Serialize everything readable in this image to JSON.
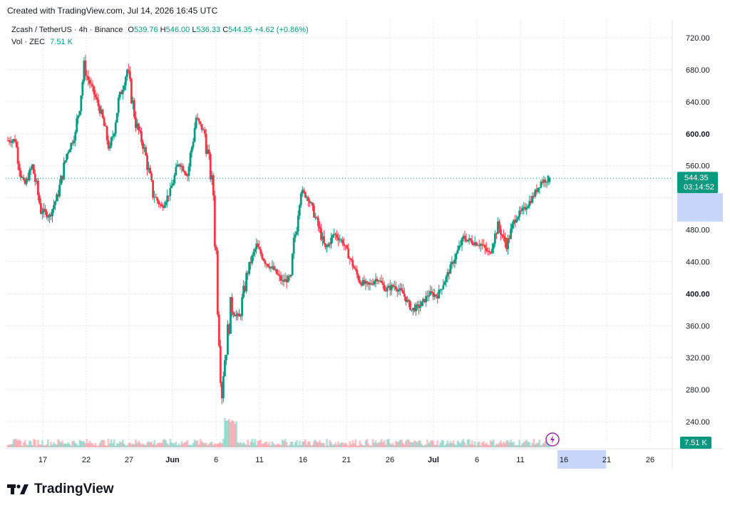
{
  "header": {
    "created_text": "Created with TradingView.com, Jul 14, 2026 16:45 UTC"
  },
  "legend": {
    "symbol": "Zcash / TetherUS · 4h · Binance",
    "o_label": "O",
    "o_value": "539.76",
    "h_label": "H",
    "h_value": "546.00",
    "l_label": "L",
    "l_value": "536.33",
    "c_label": "C",
    "c_value": "544.35",
    "change": "+4.62 (+0.86%)",
    "vol_label": "Vol · ZEC",
    "vol_value": "7.51 K"
  },
  "brand": {
    "name": "TradingView"
  },
  "colors": {
    "up": "#089981",
    "down": "#f23645",
    "grid": "#e0e3eb",
    "price_line": "#089981",
    "highlight": "#c9d6fb"
  },
  "icons": {
    "lightning": "lightning-icon",
    "logo": "tradingview-logo-icon"
  },
  "chart_data": {
    "type": "candlestick",
    "symbol": "Zcash / TetherUS",
    "interval": "4h",
    "exchange": "Binance",
    "ylim": [
      220,
      740
    ],
    "y_ticks": [
      "720.00",
      "680.00",
      "640.00",
      "600.00",
      "560.00",
      "520.00",
      "480.00",
      "440.00",
      "400.00",
      "360.00",
      "320.00",
      "280.00",
      "240.00"
    ],
    "x_ticks": [
      "17",
      "22",
      "27",
      "Jun",
      "6",
      "11",
      "16",
      "21",
      "26",
      "Jul",
      "6",
      "11",
      "16",
      "21",
      "26"
    ],
    "last_price": "544.35",
    "countdown": "03:14:52",
    "volume_label": "7.51 K",
    "series_close": [
      {
        "date": "May 13",
        "close": 592
      },
      {
        "date": "May 14",
        "close": 532
      },
      {
        "date": "May 15",
        "close": 560
      },
      {
        "date": "May 16",
        "close": 505
      },
      {
        "date": "May 17",
        "close": 497
      },
      {
        "date": "May 18",
        "close": 525
      },
      {
        "date": "May 19",
        "close": 575
      },
      {
        "date": "May 20",
        "close": 600
      },
      {
        "date": "May 21",
        "close": 680
      },
      {
        "date": "May 22",
        "close": 655
      },
      {
        "date": "May 23",
        "close": 625
      },
      {
        "date": "May 24",
        "close": 578
      },
      {
        "date": "May 25",
        "close": 640
      },
      {
        "date": "May 26",
        "close": 680
      },
      {
        "date": "May 27",
        "close": 615
      },
      {
        "date": "May 28",
        "close": 580
      },
      {
        "date": "May 29",
        "close": 525
      },
      {
        "date": "May 30",
        "close": 508
      },
      {
        "date": "May 31",
        "close": 528
      },
      {
        "date": "Jun 1",
        "close": 565
      },
      {
        "date": "Jun 2",
        "close": 548
      },
      {
        "date": "Jun 3",
        "close": 620
      },
      {
        "date": "Jun 4",
        "close": 600
      },
      {
        "date": "Jun 5",
        "close": 525
      },
      {
        "date": "Jun 6",
        "close": 290
      },
      {
        "date": "Jun 7",
        "close": 380
      },
      {
        "date": "Jun 8",
        "close": 370
      },
      {
        "date": "Jun 9",
        "close": 430
      },
      {
        "date": "Jun 10",
        "close": 460
      },
      {
        "date": "Jun 11",
        "close": 440
      },
      {
        "date": "Jun 12",
        "close": 430
      },
      {
        "date": "Jun 13",
        "close": 415
      },
      {
        "date": "Jun 14",
        "close": 420
      },
      {
        "date": "Jun 15",
        "close": 530
      },
      {
        "date": "Jun 16",
        "close": 520
      },
      {
        "date": "Jun 17",
        "close": 490
      },
      {
        "date": "Jun 18",
        "close": 455
      },
      {
        "date": "Jun 19",
        "close": 475
      },
      {
        "date": "Jun 20",
        "close": 465
      },
      {
        "date": "Jun 21",
        "close": 440
      },
      {
        "date": "Jun 22",
        "close": 415
      },
      {
        "date": "Jun 23",
        "close": 410
      },
      {
        "date": "Jun 24",
        "close": 420
      },
      {
        "date": "Jun 25",
        "close": 405
      },
      {
        "date": "Jun 26",
        "close": 410
      },
      {
        "date": "Jun 27",
        "close": 400
      },
      {
        "date": "Jun 28",
        "close": 380
      },
      {
        "date": "Jun 29",
        "close": 385
      },
      {
        "date": "Jun 30",
        "close": 400
      },
      {
        "date": "Jul 1",
        "close": 398
      },
      {
        "date": "Jul 2",
        "close": 420
      },
      {
        "date": "Jul 3",
        "close": 445
      },
      {
        "date": "Jul 4",
        "close": 470
      },
      {
        "date": "Jul 5",
        "close": 465
      },
      {
        "date": "Jul 6",
        "close": 462
      },
      {
        "date": "Jul 7",
        "close": 450
      },
      {
        "date": "Jul 8",
        "close": 485
      },
      {
        "date": "Jul 9",
        "close": 460
      },
      {
        "date": "Jul 10",
        "close": 495
      },
      {
        "date": "Jul 11",
        "close": 505
      },
      {
        "date": "Jul 12",
        "close": 520
      },
      {
        "date": "Jul 13",
        "close": 540
      },
      {
        "date": "Jul 14",
        "close": 544.35
      }
    ]
  }
}
